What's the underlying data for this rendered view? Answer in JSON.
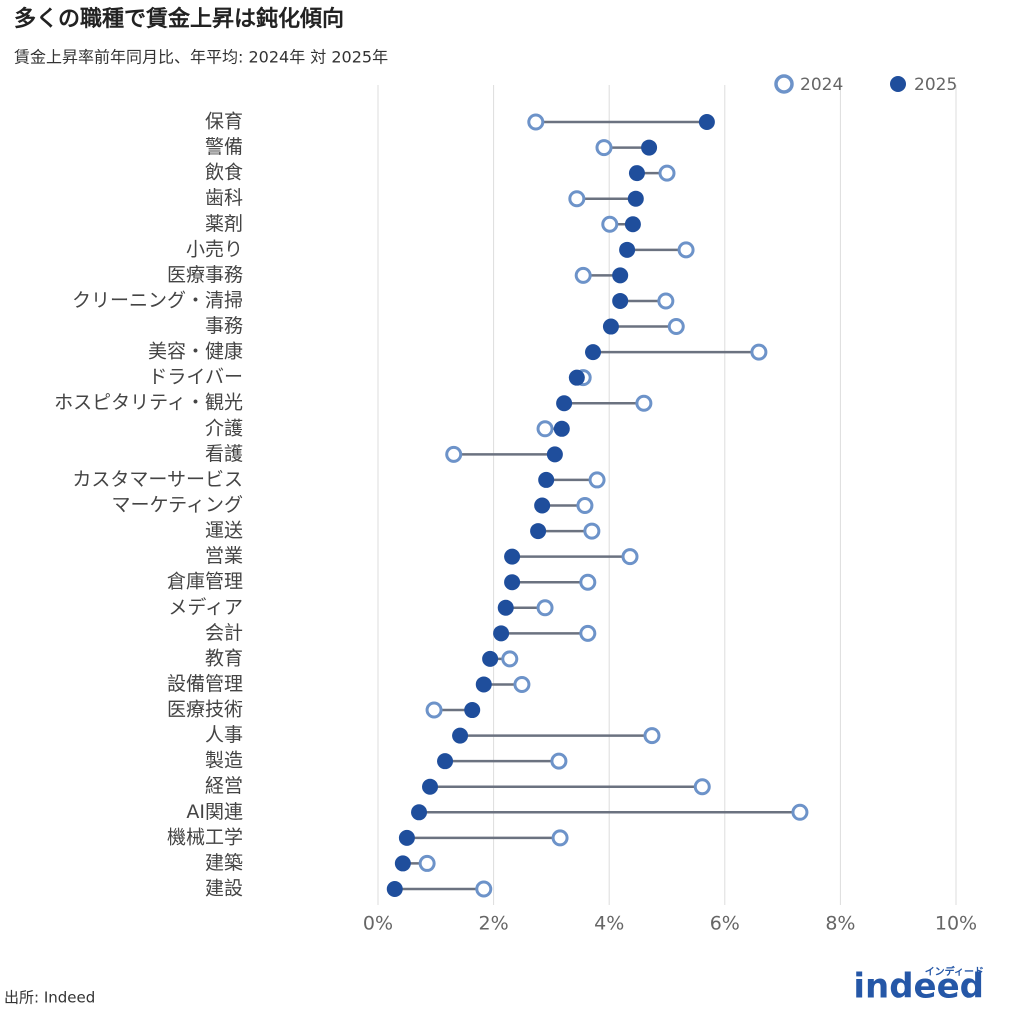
{
  "chart_data": {
    "type": "dumbbell",
    "title": "多くの職種で賃金上昇は鈍化傾向",
    "subtitle": "賃金上昇率前年同月比、年平均: 2024年 対 2025年",
    "source": "出所: Indeed",
    "logo": "indeed",
    "logo_sub": "インディード",
    "categories": [
      "保育",
      "警備",
      "飲食",
      "歯科",
      "薬剤",
      "小売り",
      "医療事務",
      "クリーニング・清掃",
      "事務",
      "美容・健康",
      "ドライバー",
      "ホスピタリティ・観光",
      "介護",
      "看護",
      "カスタマーサービス",
      "マーケティング",
      "運送",
      "営業",
      "倉庫管理",
      "メディア",
      "会計",
      "教育",
      "設備管理",
      "医療技術",
      "人事",
      "製造",
      "経営",
      "AI関連",
      "機械工学",
      "建築",
      "建設"
    ],
    "series": [
      {
        "name": "2024",
        "color": "#6d93c9",
        "values": [
          2.73,
          3.91,
          5.0,
          3.44,
          4.01,
          5.33,
          3.55,
          4.98,
          5.16,
          6.59,
          3.55,
          4.6,
          2.89,
          1.31,
          3.79,
          3.58,
          3.7,
          4.36,
          3.63,
          2.89,
          3.63,
          2.28,
          2.49,
          0.97,
          4.74,
          3.13,
          5.61,
          7.3,
          3.15,
          0.85,
          1.83
        ]
      },
      {
        "name": "2025",
        "color": "#1f4e9c",
        "values": [
          5.69,
          4.69,
          4.48,
          4.46,
          4.41,
          4.31,
          4.19,
          4.19,
          4.03,
          3.72,
          3.44,
          3.22,
          3.18,
          3.06,
          2.91,
          2.84,
          2.77,
          2.32,
          2.32,
          2.21,
          2.13,
          1.94,
          1.83,
          1.63,
          1.42,
          1.16,
          0.9,
          0.71,
          0.5,
          0.43,
          0.29
        ]
      }
    ],
    "xlim": [
      0,
      10
    ],
    "xticks": [
      {
        "value": 0,
        "label": "0%"
      },
      {
        "value": 2,
        "label": "2%"
      },
      {
        "value": 4,
        "label": "4%"
      },
      {
        "value": 6,
        "label": "6%"
      },
      {
        "value": 8,
        "label": "8%"
      },
      {
        "value": 10,
        "label": "10%"
      }
    ],
    "grid": true,
    "connector_color": "#6b7280"
  }
}
